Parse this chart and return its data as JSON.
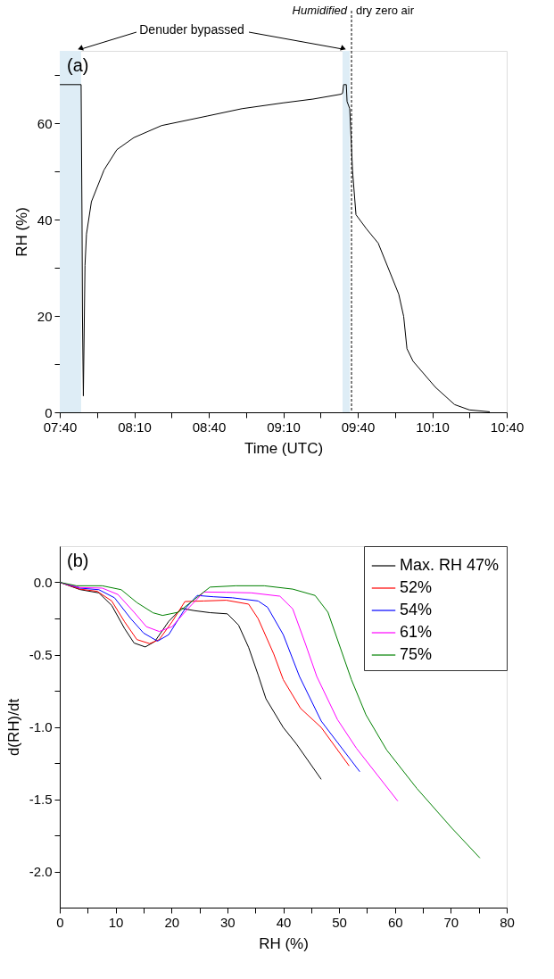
{
  "chart_data": [
    {
      "type": "line",
      "xlabel": "Time (UTC)",
      "ylabel": "RH (%)",
      "annotations": [
        "(a)",
        "Denuder bypassed",
        "Humidified",
        "dry zero air"
      ],
      "series": [
        {
          "color": "#000000",
          "x": [
            7.667,
            7.81,
            7.816,
            7.819,
            7.825,
            7.836,
            7.846,
            7.879,
            7.964,
            8.05,
            8.164,
            8.35,
            8.66,
            8.889,
            9.164,
            9.367,
            9.553,
            9.565,
            9.572,
            9.59,
            9.595,
            9.613,
            9.632,
            9.655,
            9.727,
            9.804,
            9.942,
            9.975,
            9.997,
            10.038,
            10.188,
            10.317,
            10.416,
            10.553
          ],
          "values": [
            68,
            68,
            40,
            20,
            3.4,
            30.5,
            37,
            43.7,
            50.3,
            54.5,
            57,
            59.5,
            61.5,
            63,
            64.2,
            65,
            66,
            66.2,
            68,
            68,
            64.5,
            63,
            50,
            41,
            38,
            35.1,
            24.5,
            19.9,
            13.2,
            10.6,
            5.2,
            1.6,
            0.5,
            0.1
          ]
        }
      ],
      "xlim": [
        7.6667,
        10.6667
      ],
      "xticks": [
        {
          "value": 7.6667,
          "label": "07:40"
        },
        {
          "value": 7.9167,
          "label": null
        },
        {
          "value": 8.1667,
          "label": "08:10"
        },
        {
          "value": 8.4167,
          "label": null
        },
        {
          "value": 8.6667,
          "label": "08:40"
        },
        {
          "value": 8.9167,
          "label": null
        },
        {
          "value": 9.1667,
          "label": "09:10"
        },
        {
          "value": 9.4167,
          "label": null
        },
        {
          "value": 9.6667,
          "label": "09:40"
        },
        {
          "value": 9.9167,
          "label": null
        },
        {
          "value": 10.1667,
          "label": "10:10"
        },
        {
          "value": 10.4167,
          "label": null
        },
        {
          "value": 10.6667,
          "label": "10:40"
        }
      ],
      "ylim": [
        0,
        75
      ],
      "yticks": [
        0,
        {
          "value": 10,
          "label": null
        },
        20,
        {
          "value": 30,
          "label": null
        },
        40,
        {
          "value": 50,
          "label": null
        },
        60,
        {
          "value": 70,
          "label": null
        }
      ],
      "bands": [
        {
          "axis": "x",
          "from": 7.6667,
          "to": 7.81,
          "label": null,
          "color": "#deedf6"
        },
        {
          "axis": "x",
          "from": 9.565,
          "to": 9.613,
          "label": null,
          "color": "#deedf6"
        }
      ],
      "ref_lines": [
        {
          "axis": "x",
          "value": 9.625,
          "label": null,
          "color": "#000000",
          "line_style": "dashed"
        }
      ],
      "grid": false,
      "legend": false
    },
    {
      "type": "line",
      "xlabel": "RH (%)",
      "ylabel": "d(RH)/dt",
      "annotations": [
        "(b)"
      ],
      "series": [
        {
          "name": "Max. RH 47%",
          "color": "#000000",
          "x": [
            0,
            3.6,
            7.0,
            9.3,
            11.6,
            13.3,
            15.3,
            17.0,
            19.5,
            21.8,
            24.1,
            26.9,
            30.0,
            32.0,
            33.8,
            35.5,
            36.9,
            40.0,
            42.3,
            46.8
          ],
          "values": [
            0,
            -0.05,
            -0.073,
            -0.16,
            -0.32,
            -0.42,
            -0.447,
            -0.41,
            -0.27,
            -0.18,
            -0.196,
            -0.21,
            -0.218,
            -0.296,
            -0.45,
            -0.64,
            -0.805,
            -1.004,
            -1.115,
            -1.363
          ]
        },
        {
          "name": "52%",
          "color": "#ff0000",
          "x": [
            0,
            3.6,
            6.7,
            9.3,
            11.6,
            13.8,
            16.1,
            17.8,
            20.1,
            22.4,
            25.8,
            29.8,
            33.8,
            35.5,
            38.3,
            40.0,
            43.1,
            46.8,
            51.8
          ],
          "values": [
            0,
            -0.047,
            -0.062,
            -0.129,
            -0.273,
            -0.396,
            -0.424,
            -0.396,
            -0.273,
            -0.133,
            -0.129,
            -0.124,
            -0.151,
            -0.251,
            -0.496,
            -0.673,
            -0.872,
            -1.004,
            -1.27
          ]
        },
        {
          "name": "54%",
          "color": "#0000ff",
          "x": [
            0,
            3.6,
            7.0,
            9.8,
            12.7,
            15.0,
            17.5,
            19.5,
            22.4,
            24.6,
            27.5,
            30.9,
            35.5,
            37.2,
            40.0,
            42.9,
            46.8,
            53.7
          ],
          "values": [
            0,
            -0.04,
            -0.051,
            -0.107,
            -0.251,
            -0.351,
            -0.407,
            -0.362,
            -0.184,
            -0.091,
            -0.1,
            -0.107,
            -0.129,
            -0.173,
            -0.362,
            -0.651,
            -0.96,
            -1.31
          ]
        },
        {
          "name": "61%",
          "color": "#ff00ff",
          "x": [
            0,
            3.6,
            7.6,
            10.4,
            13.3,
            15.5,
            17.8,
            20.1,
            22.9,
            25.8,
            29.8,
            34.3,
            39.4,
            41.7,
            44.0,
            46.0,
            49.7,
            53.1,
            60.5
          ],
          "values": [
            0,
            -0.036,
            -0.04,
            -0.084,
            -0.207,
            -0.307,
            -0.34,
            -0.307,
            -0.184,
            -0.067,
            -0.069,
            -0.073,
            -0.096,
            -0.184,
            -0.429,
            -0.651,
            -0.949,
            -1.148,
            -1.513
          ]
        },
        {
          "name": "75%",
          "color": "#008000",
          "x": [
            0,
            3.0,
            7.6,
            11.0,
            13.8,
            16.7,
            18.4,
            21.2,
            24.1,
            26.9,
            31.5,
            36.6,
            41.7,
            45.7,
            48.0,
            50.0,
            52.2,
            54.8,
            58.5,
            63.9,
            70.2,
            75.2
          ],
          "values": [
            0,
            -0.024,
            -0.024,
            -0.051,
            -0.14,
            -0.211,
            -0.229,
            -0.207,
            -0.118,
            -0.033,
            -0.024,
            -0.024,
            -0.047,
            -0.091,
            -0.207,
            -0.429,
            -0.673,
            -0.916,
            -1.159,
            -1.425,
            -1.701,
            -1.907
          ]
        }
      ],
      "xlim": [
        0,
        80
      ],
      "xticks": [
        0,
        {
          "value": 5,
          "label": null
        },
        10,
        {
          "value": 15,
          "label": null
        },
        20,
        {
          "value": 25,
          "label": null
        },
        30,
        {
          "value": 35,
          "label": null
        },
        40,
        {
          "value": 45,
          "label": null
        },
        50,
        {
          "value": 55,
          "label": null
        },
        60,
        {
          "value": 65,
          "label": null
        },
        70,
        {
          "value": 75,
          "label": null
        },
        80
      ],
      "ylim": [
        -2.25,
        0.25
      ],
      "yticks": [
        {
          "value": 0,
          "label": "0.0"
        },
        {
          "value": -0.25,
          "label": null
        },
        {
          "value": -0.5,
          "label": "-0.5"
        },
        {
          "value": -0.75,
          "label": null
        },
        {
          "value": -1.0,
          "label": "-1.0"
        },
        {
          "value": -1.25,
          "label": null
        },
        {
          "value": -1.5,
          "label": "-1.5"
        },
        {
          "value": -1.75,
          "label": null
        },
        {
          "value": -2.0,
          "label": "-2.0"
        }
      ],
      "grid": false,
      "legend": "top right"
    }
  ]
}
